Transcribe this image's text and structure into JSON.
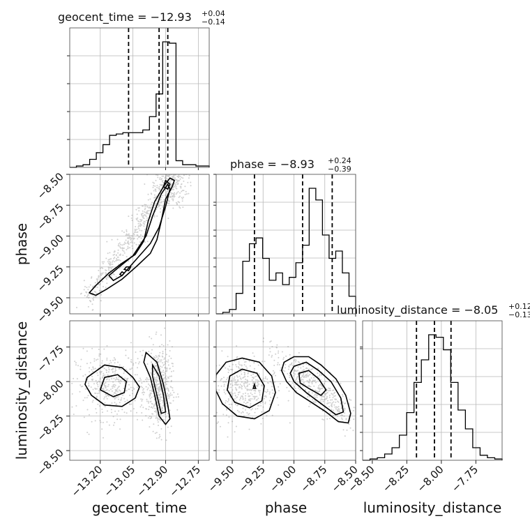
{
  "chart_data": {
    "type": "corner",
    "parameters": [
      "geocent_time",
      "phase",
      "luminosity_distance"
    ],
    "titles": [
      {
        "prefix": "geocent_time = ",
        "median": "−12.93",
        "upper": "+0.04",
        "lower": "−0.14"
      },
      {
        "prefix": "phase = ",
        "median": "−8.93",
        "upper": "+0.24",
        "lower": "−0.39"
      },
      {
        "prefix": "luminosity_distance = ",
        "median": "−8.05",
        "upper": "+0.12",
        "lower": "−0.13"
      }
    ],
    "axis_labels": {
      "x": [
        "geocent_time",
        "phase",
        "luminosity_distance"
      ],
      "y": [
        "phase",
        "luminosity_distance"
      ]
    },
    "ranges": {
      "geocent_time": [
        -13.34,
        -12.7
      ],
      "phase": [
        -9.63,
        -8.5
      ],
      "luminosity_distance": [
        -8.57,
        -7.56
      ]
    },
    "ticks": {
      "geocent_time": {
        "values": [
          -13.2,
          -13.05,
          -12.9,
          -12.75
        ],
        "labels": [
          "−13.20",
          "−13.05",
          "−12.90",
          "−12.75"
        ]
      },
      "phase": {
        "values": [
          -9.5,
          -9.25,
          -9.0,
          -8.75,
          -8.5
        ],
        "labels": [
          "−9.50",
          "−9.25",
          "−9.00",
          "−8.75",
          "−8.50"
        ]
      },
      "luminosity_distance": {
        "values": [
          -8.5,
          -8.25,
          -8.0,
          -7.75
        ],
        "labels": [
          "−8.50",
          "−8.25",
          "−8.00",
          "−7.75"
        ]
      }
    },
    "quantiles": {
      "geocent_time": [
        -13.07,
        -12.93,
        -12.89
      ],
      "phase": [
        -9.32,
        -8.93,
        -8.69
      ],
      "luminosity_distance": [
        -8.18,
        -8.05,
        -7.93
      ]
    },
    "histograms": {
      "geocent_time": {
        "range": [
          -13.34,
          -12.7
        ],
        "counts": [
          0,
          1,
          2,
          6,
          11,
          17,
          24,
          25,
          26,
          26,
          26,
          28,
          38,
          55,
          94,
          93,
          5,
          2,
          2,
          1,
          1
        ]
      },
      "phase": {
        "range": [
          -9.63,
          -8.5
        ],
        "counts": [
          0,
          1,
          3,
          14,
          36,
          48,
          52,
          38,
          23,
          28,
          20,
          25,
          35,
          47,
          86,
          78,
          54,
          38,
          43,
          28,
          12
        ]
      },
      "luminosity_distance": {
        "range": [
          -8.57,
          -7.56
        ],
        "counts": [
          0,
          1,
          2,
          5,
          10,
          20,
          38,
          62,
          80,
          100,
          98,
          88,
          62,
          40,
          25,
          10,
          4,
          2,
          1
        ]
      }
    },
    "contours": {
      "phase_vs_geocent_time": [
        [
          [
            -13.22,
            -9.48
          ],
          [
            -13.17,
            -9.43
          ],
          [
            -13.1,
            -9.35
          ],
          [
            -13.03,
            -9.24
          ],
          [
            -12.97,
            -9.14
          ],
          [
            -12.94,
            -9.03
          ],
          [
            -12.92,
            -8.88
          ],
          [
            -12.9,
            -8.7
          ],
          [
            -12.87,
            -8.6
          ],
          [
            -12.86,
            -8.55
          ],
          [
            -12.88,
            -8.53
          ],
          [
            -12.91,
            -8.6
          ],
          [
            -12.95,
            -8.72
          ],
          [
            -12.98,
            -8.88
          ],
          [
            -13.0,
            -9.04
          ],
          [
            -13.04,
            -9.15
          ],
          [
            -13.1,
            -9.22
          ],
          [
            -13.16,
            -9.3
          ],
          [
            -13.22,
            -9.4
          ],
          [
            -13.25,
            -9.46
          ]
        ],
        [
          [
            -13.14,
            -9.36
          ],
          [
            -13.1,
            -9.32
          ],
          [
            -13.05,
            -9.22
          ],
          [
            -12.97,
            -9.06
          ],
          [
            -12.93,
            -8.93
          ],
          [
            -12.9,
            -8.76
          ],
          [
            -12.88,
            -8.62
          ],
          [
            -12.89,
            -8.58
          ],
          [
            -12.92,
            -8.66
          ],
          [
            -12.96,
            -8.84
          ],
          [
            -12.99,
            -9.0
          ],
          [
            -13.05,
            -9.16
          ],
          [
            -13.12,
            -9.26
          ],
          [
            -13.16,
            -9.32
          ]
        ],
        [
          [
            -12.89,
            -8.62
          ],
          [
            -12.88,
            -8.58
          ],
          [
            -12.9,
            -8.55
          ],
          [
            -12.91,
            -8.6
          ]
        ],
        [
          [
            -13.1,
            -9.32
          ],
          [
            -13.09,
            -9.3
          ],
          [
            -13.1,
            -9.29
          ],
          [
            -13.11,
            -9.31
          ]
        ],
        [
          [
            -13.07,
            -9.28
          ],
          [
            -13.06,
            -9.25
          ],
          [
            -13.08,
            -9.25
          ],
          [
            -13.09,
            -9.27
          ]
        ]
      ],
      "luminosity_distance_vs_geocent_time": [
        [
          [
            -13.26,
            -7.97
          ],
          [
            -13.18,
            -7.88
          ],
          [
            -13.1,
            -7.9
          ],
          [
            -13.05,
            -7.97
          ],
          [
            -13.02,
            -8.04
          ],
          [
            -13.04,
            -8.12
          ],
          [
            -13.1,
            -8.18
          ],
          [
            -13.18,
            -8.17
          ],
          [
            -13.24,
            -8.1
          ],
          [
            -13.27,
            -8.02
          ]
        ],
        [
          [
            -13.18,
            -7.97
          ],
          [
            -13.12,
            -7.95
          ],
          [
            -13.08,
            -8.0
          ],
          [
            -13.09,
            -8.08
          ],
          [
            -13.14,
            -8.11
          ],
          [
            -13.2,
            -8.06
          ]
        ],
        [
          [
            -12.99,
            -7.79
          ],
          [
            -12.94,
            -7.86
          ],
          [
            -12.91,
            -8.02
          ],
          [
            -12.89,
            -8.17
          ],
          [
            -12.88,
            -8.27
          ],
          [
            -12.9,
            -8.31
          ],
          [
            -12.93,
            -8.25
          ],
          [
            -12.95,
            -8.1
          ],
          [
            -12.97,
            -7.97
          ],
          [
            -13.0,
            -7.86
          ]
        ],
        [
          [
            -12.96,
            -7.88
          ],
          [
            -12.93,
            -7.96
          ],
          [
            -12.91,
            -8.1
          ],
          [
            -12.9,
            -8.22
          ],
          [
            -12.92,
            -8.23
          ],
          [
            -12.94,
            -8.1
          ],
          [
            -12.96,
            -7.96
          ]
        ]
      ],
      "luminosity_distance_vs_phase": [
        [
          [
            -9.63,
            -7.95
          ],
          [
            -9.55,
            -7.86
          ],
          [
            -9.42,
            -7.83
          ],
          [
            -9.28,
            -7.86
          ],
          [
            -9.18,
            -7.96
          ],
          [
            -9.15,
            -8.08
          ],
          [
            -9.2,
            -8.21
          ],
          [
            -9.32,
            -8.27
          ],
          [
            -9.46,
            -8.25
          ],
          [
            -9.58,
            -8.16
          ],
          [
            -9.64,
            -8.05
          ]
        ],
        [
          [
            -9.52,
            -7.96
          ],
          [
            -9.42,
            -7.91
          ],
          [
            -9.3,
            -7.94
          ],
          [
            -9.24,
            -8.03
          ],
          [
            -9.26,
            -8.14
          ],
          [
            -9.36,
            -8.19
          ],
          [
            -9.48,
            -8.15
          ],
          [
            -9.54,
            -8.06
          ]
        ],
        [
          [
            -9.32,
            -8.02
          ],
          [
            -9.31,
            -8.05
          ],
          [
            -9.33,
            -8.05
          ]
        ],
        [
          [
            -9.08,
            -7.86
          ],
          [
            -9.0,
            -7.82
          ],
          [
            -8.88,
            -7.82
          ],
          [
            -8.78,
            -7.88
          ],
          [
            -8.66,
            -7.98
          ],
          [
            -8.58,
            -8.1
          ],
          [
            -8.54,
            -8.23
          ],
          [
            -8.56,
            -8.3
          ],
          [
            -8.64,
            -8.29
          ],
          [
            -8.74,
            -8.22
          ],
          [
            -8.86,
            -8.15
          ],
          [
            -8.98,
            -8.08
          ],
          [
            -9.06,
            -8.0
          ],
          [
            -9.1,
            -7.92
          ]
        ],
        [
          [
            -9.0,
            -7.89
          ],
          [
            -8.9,
            -7.86
          ],
          [
            -8.8,
            -7.92
          ],
          [
            -8.7,
            -8.0
          ],
          [
            -8.62,
            -8.12
          ],
          [
            -8.6,
            -8.22
          ],
          [
            -8.66,
            -8.24
          ],
          [
            -8.78,
            -8.16
          ],
          [
            -8.9,
            -8.08
          ],
          [
            -9.0,
            -8.0
          ],
          [
            -9.03,
            -7.94
          ]
        ],
        [
          [
            -8.96,
            -7.94
          ],
          [
            -8.88,
            -7.92
          ],
          [
            -8.8,
            -7.98
          ],
          [
            -8.74,
            -8.06
          ],
          [
            -8.78,
            -8.1
          ],
          [
            -8.88,
            -8.05
          ],
          [
            -8.95,
            -8.01
          ]
        ]
      ]
    }
  }
}
